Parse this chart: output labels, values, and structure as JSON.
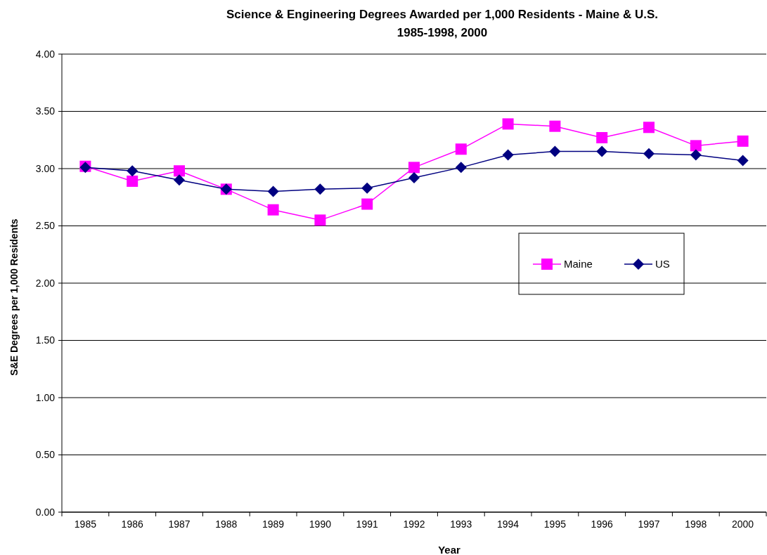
{
  "chart_data": {
    "type": "line",
    "title": "Science & Engineering Degrees Awarded per 1,000 Residents - Maine & U.S.",
    "subtitle": "1985-1998, 2000",
    "xlabel": "Year",
    "ylabel": "S&E Degrees per 1,000 Residents",
    "categories": [
      "1985",
      "1986",
      "1987",
      "1988",
      "1989",
      "1990",
      "1991",
      "1992",
      "1993",
      "1994",
      "1995",
      "1996",
      "1997",
      "1998",
      "2000"
    ],
    "series": [
      {
        "name": "Maine",
        "color": "#ff00ff",
        "marker": "square",
        "values": [
          3.02,
          2.89,
          2.98,
          2.82,
          2.64,
          2.55,
          2.69,
          3.01,
          3.17,
          3.39,
          3.37,
          3.27,
          3.36,
          3.2,
          3.24
        ]
      },
      {
        "name": "US",
        "color": "#000080",
        "marker": "diamond",
        "values": [
          3.01,
          2.98,
          2.9,
          2.82,
          2.8,
          2.82,
          2.83,
          2.92,
          3.01,
          3.12,
          3.15,
          3.15,
          3.13,
          3.12,
          3.07
        ]
      }
    ],
    "ylim": [
      0,
      4
    ],
    "yticks": [
      {
        "value": 0,
        "label": "0.00"
      },
      {
        "value": 0.5,
        "label": "0.50"
      },
      {
        "value": 1,
        "label": "1.00"
      },
      {
        "value": 1.5,
        "label": "1.50"
      },
      {
        "value": 2,
        "label": "2.00"
      },
      {
        "value": 2.5,
        "label": "2.50"
      },
      {
        "value": 3,
        "label": "3.00"
      },
      {
        "value": 3.5,
        "label": "3.50"
      },
      {
        "value": 4,
        "label": "4.00"
      }
    ],
    "grid": "y",
    "legend": "right"
  }
}
